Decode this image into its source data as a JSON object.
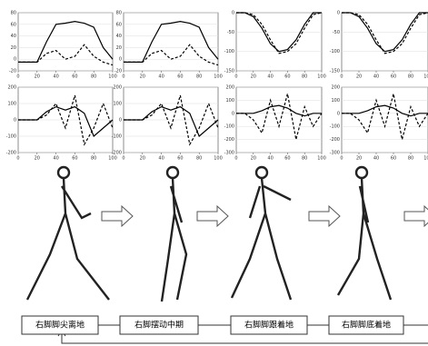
{
  "chart_data": [
    {
      "type": "line",
      "x": [
        0,
        10,
        20,
        30,
        40,
        50,
        60,
        70,
        80,
        90,
        100
      ],
      "xlim": [
        0,
        100
      ],
      "xticks": [
        0,
        20,
        40,
        60,
        80,
        100
      ],
      "ylim": [
        -20,
        80
      ],
      "yticks": [
        -20,
        0,
        20,
        40,
        60,
        80
      ],
      "series": [
        {
          "color": "#000",
          "style": "solid",
          "values": [
            -5,
            -5,
            -5,
            30,
            60,
            62,
            65,
            62,
            55,
            20,
            0
          ]
        },
        {
          "color": "#000",
          "style": "dashed",
          "values": [
            -5,
            -5,
            -5,
            10,
            15,
            0,
            5,
            25,
            5,
            -5,
            -10
          ]
        }
      ]
    },
    {
      "type": "line",
      "x": [
        0,
        10,
        20,
        30,
        40,
        50,
        60,
        70,
        80,
        90,
        100
      ],
      "xlim": [
        0,
        100
      ],
      "xticks": [
        0,
        20,
        40,
        60,
        80,
        100
      ],
      "ylim": [
        -20,
        80
      ],
      "yticks": [
        -20,
        0,
        20,
        40,
        60,
        80
      ],
      "series": [
        {
          "color": "#000",
          "style": "solid",
          "values": [
            -5,
            -5,
            -5,
            30,
            60,
            62,
            65,
            62,
            55,
            20,
            0
          ]
        },
        {
          "color": "#000",
          "style": "dashed",
          "values": [
            -5,
            -5,
            -5,
            10,
            15,
            0,
            5,
            25,
            5,
            -5,
            -10
          ]
        }
      ]
    },
    {
      "type": "line",
      "x": [
        0,
        10,
        20,
        30,
        40,
        50,
        60,
        70,
        80,
        90,
        100
      ],
      "xlim": [
        0,
        100
      ],
      "xticks": [
        0,
        20,
        40,
        60,
        80,
        100
      ],
      "ylim": [
        -150,
        0
      ],
      "yticks": [
        -150,
        -100,
        -50,
        0
      ],
      "series": [
        {
          "color": "#000",
          "style": "solid",
          "values": [
            0,
            0,
            -10,
            -40,
            -80,
            -100,
            -95,
            -70,
            -30,
            0,
            0
          ]
        },
        {
          "color": "#000",
          "style": "dashed",
          "values": [
            0,
            0,
            -5,
            -30,
            -70,
            -105,
            -100,
            -80,
            -40,
            -5,
            0
          ]
        }
      ]
    },
    {
      "type": "line",
      "x": [
        0,
        10,
        20,
        30,
        40,
        50,
        60,
        70,
        80,
        90,
        100
      ],
      "xlim": [
        0,
        100
      ],
      "xticks": [
        0,
        20,
        40,
        60,
        80,
        100
      ],
      "ylim": [
        -150,
        0
      ],
      "yticks": [
        -150,
        -100,
        -50,
        0
      ],
      "series": [
        {
          "color": "#000",
          "style": "solid",
          "values": [
            0,
            0,
            -10,
            -40,
            -80,
            -100,
            -95,
            -70,
            -30,
            0,
            0
          ]
        },
        {
          "color": "#000",
          "style": "dashed",
          "values": [
            0,
            0,
            -5,
            -30,
            -70,
            -105,
            -100,
            -80,
            -40,
            -5,
            0
          ]
        }
      ]
    },
    {
      "type": "line",
      "x": [
        0,
        10,
        20,
        30,
        40,
        50,
        60,
        70,
        80,
        90,
        100
      ],
      "xlim": [
        0,
        100
      ],
      "xticks": [
        0,
        20,
        40,
        60,
        80,
        100
      ],
      "ylim": [
        -200,
        200
      ],
      "yticks": [
        -200,
        -100,
        0,
        100,
        200
      ],
      "series": [
        {
          "color": "#000",
          "style": "solid",
          "values": [
            0,
            0,
            0,
            50,
            80,
            60,
            80,
            40,
            -100,
            -50,
            0
          ]
        },
        {
          "color": "#000",
          "style": "dashed",
          "values": [
            0,
            0,
            0,
            30,
            100,
            -50,
            150,
            -150,
            -50,
            100,
            -50
          ]
        }
      ]
    },
    {
      "type": "line",
      "x": [
        0,
        10,
        20,
        30,
        40,
        50,
        60,
        70,
        80,
        90,
        100
      ],
      "xlim": [
        0,
        100
      ],
      "xticks": [
        0,
        20,
        40,
        60,
        80,
        100
      ],
      "ylim": [
        -200,
        200
      ],
      "yticks": [
        -200,
        -100,
        0,
        100,
        200
      ],
      "series": [
        {
          "color": "#000",
          "style": "solid",
          "values": [
            0,
            0,
            0,
            50,
            80,
            60,
            80,
            40,
            -100,
            -50,
            0
          ]
        },
        {
          "color": "#000",
          "style": "dashed",
          "values": [
            0,
            0,
            0,
            30,
            100,
            -50,
            150,
            -150,
            -50,
            100,
            -50
          ]
        }
      ]
    },
    {
      "type": "line",
      "x": [
        0,
        10,
        20,
        30,
        40,
        50,
        60,
        70,
        80,
        90,
        100
      ],
      "xlim": [
        0,
        100
      ],
      "xticks": [
        0,
        20,
        40,
        60,
        80,
        100
      ],
      "ylim": [
        -300,
        200
      ],
      "yticks": [
        -300,
        -200,
        -100,
        0,
        100,
        200
      ],
      "series": [
        {
          "color": "#000",
          "style": "solid",
          "values": [
            0,
            0,
            0,
            20,
            50,
            60,
            40,
            0,
            -20,
            0,
            0
          ]
        },
        {
          "color": "#000",
          "style": "dashed",
          "values": [
            0,
            0,
            -50,
            -150,
            100,
            -100,
            150,
            -200,
            50,
            -100,
            0
          ]
        }
      ]
    },
    {
      "type": "line",
      "x": [
        0,
        10,
        20,
        30,
        40,
        50,
        60,
        70,
        80,
        90,
        100
      ],
      "xlim": [
        0,
        100
      ],
      "xticks": [
        0,
        20,
        40,
        60,
        80,
        100
      ],
      "ylim": [
        -300,
        200
      ],
      "yticks": [
        -300,
        -200,
        -100,
        0,
        100,
        200
      ],
      "series": [
        {
          "color": "#000",
          "style": "solid",
          "values": [
            0,
            0,
            0,
            20,
            50,
            60,
            40,
            0,
            -20,
            0,
            0
          ]
        },
        {
          "color": "#000",
          "style": "dashed",
          "values": [
            0,
            0,
            -50,
            -150,
            100,
            -100,
            150,
            -200,
            50,
            -100,
            0
          ]
        }
      ]
    }
  ],
  "phases": [
    "右脚脚尖离地",
    "右脚摆动中期",
    "右脚脚跟着地",
    "右脚脚底着地"
  ]
}
